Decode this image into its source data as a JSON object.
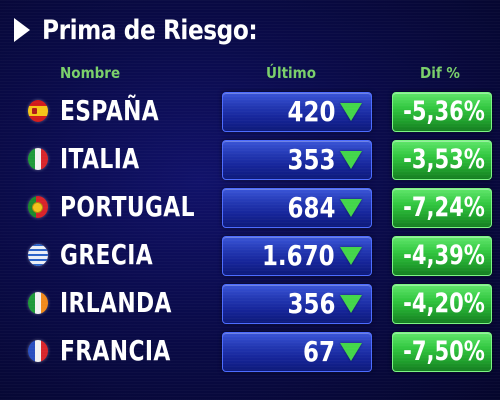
{
  "title": "Prima de Riesgo:",
  "headers": {
    "nombre": "Nombre",
    "ultimo": "Último",
    "dif": "Dif %"
  },
  "colors": {
    "background": "#0a0b4a",
    "header_text": "#7ad06a",
    "value_box": "#2338b3",
    "dif_box": "#31c63f",
    "down_arrow": "#43d64a"
  },
  "rows": [
    {
      "country": "ESPAÑA",
      "flag": "spain-flag-icon",
      "ultimo": "420",
      "trend": "down-arrow-icon",
      "dif": "-5,36%"
    },
    {
      "country": "ITALIA",
      "flag": "italy-flag-icon",
      "ultimo": "353",
      "trend": "down-arrow-icon",
      "dif": "-3,53%"
    },
    {
      "country": "PORTUGAL",
      "flag": "portugal-flag-icon",
      "ultimo": "684",
      "trend": "down-arrow-icon",
      "dif": "-7,24%"
    },
    {
      "country": "GRECIA",
      "flag": "greece-flag-icon",
      "ultimo": "1.670",
      "trend": "down-arrow-icon",
      "dif": "-4,39%"
    },
    {
      "country": "IRLANDA",
      "flag": "ireland-flag-icon",
      "ultimo": "356",
      "trend": "down-arrow-icon",
      "dif": "-4,20%"
    },
    {
      "country": "FRANCIA",
      "flag": "france-flag-icon",
      "ultimo": "67",
      "trend": "down-arrow-icon",
      "dif": "-7,50%"
    }
  ]
}
